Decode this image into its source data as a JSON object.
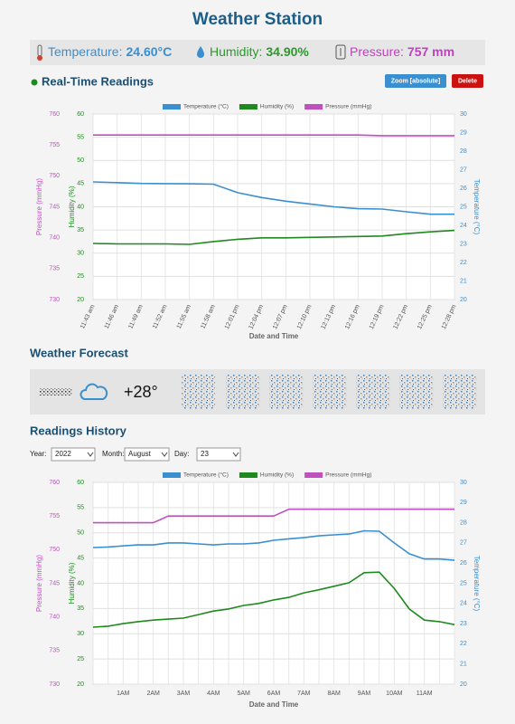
{
  "header": {
    "title": "Weather Station"
  },
  "status": {
    "temperature": {
      "label": "Temperature:",
      "value": "24.60°C"
    },
    "humidity": {
      "label": "Humidity:",
      "value": "34.90%"
    },
    "pressure": {
      "label": "Pressure:",
      "value": "757 mm"
    }
  },
  "realtime": {
    "title": "Real-Time Readings",
    "buttons": [
      "Zoom [absolute]",
      "Delete"
    ]
  },
  "forecast": {
    "title": "Weather Forecast",
    "temperature": "+28°"
  },
  "history": {
    "title": "Readings History",
    "filters": [
      {
        "label": "Year:",
        "value": "2022"
      },
      {
        "label": "Month:",
        "value": "August"
      },
      {
        "label": "Day:",
        "value": "23"
      }
    ]
  },
  "chart_data": [
    {
      "type": "line",
      "xlabel": "Date and Time",
      "grid": true,
      "categories": [
        "11:43 am",
        "11:46 am",
        "11:49 am",
        "11:52 am",
        "11:55 am",
        "11:58 am",
        "12:01 pm",
        "12:04 pm",
        "12:07 pm",
        "12:10 pm",
        "12:13 pm",
        "12:16 pm",
        "12:19 pm",
        "12:22 pm",
        "12:25 pm",
        "12:28 pm"
      ],
      "ylabel": "Humidity (%)",
      "ylim": [
        20,
        60
      ],
      "yticks": [
        20,
        25,
        30,
        35,
        40,
        45,
        50,
        55,
        60
      ],
      "y2label": "Temperature (°C)",
      "y2lim": [
        20,
        30
      ],
      "y2ticks": [
        20,
        21,
        22,
        23,
        24,
        25,
        26,
        27,
        28,
        29,
        30
      ],
      "y3label": "Pressure (mmHg)",
      "y3lim": [
        730,
        760
      ],
      "y3ticks": [
        730,
        735,
        740,
        745,
        750,
        755,
        760
      ],
      "series": [
        {
          "name": "Temperature (°C)",
          "color": "#3a8fd0",
          "axis": "y2",
          "values": [
            26.34,
            26.3,
            26.26,
            26.25,
            26.24,
            26.22,
            25.76,
            25.5,
            25.3,
            25.15,
            25.0,
            24.9,
            24.88,
            24.73,
            24.6,
            24.6
          ]
        },
        {
          "name": "Humidity (%)",
          "color": "#1e8a1e",
          "axis": "y",
          "values": [
            32.1,
            32.0,
            32.0,
            32.0,
            31.9,
            32.5,
            33.0,
            33.3,
            33.3,
            33.4,
            33.5,
            33.6,
            33.7,
            34.2,
            34.6,
            34.9
          ]
        },
        {
          "name": "Pressure (mmHg)",
          "color": "#c050c0",
          "axis": "y3",
          "values": [
            756.6,
            756.6,
            756.6,
            756.6,
            756.6,
            756.6,
            756.6,
            756.6,
            756.6,
            756.6,
            756.6,
            756.6,
            756.5,
            756.5,
            756.5,
            756.5
          ]
        }
      ]
    },
    {
      "type": "line",
      "xlabel": "Date and Time",
      "grid": true,
      "categories": [
        null,
        null,
        "1AM",
        null,
        "2AM",
        null,
        "3AM",
        null,
        "4AM",
        null,
        "5AM",
        null,
        "6AM",
        null,
        "7AM",
        null,
        "8AM",
        null,
        "9AM",
        null,
        "10AM",
        null,
        "11AM",
        null,
        null
      ],
      "ylabel": "Humidity (%)",
      "ylim": [
        20,
        60
      ],
      "yticks": [
        20,
        25,
        30,
        35,
        40,
        45,
        50,
        55,
        60
      ],
      "y2label": "Temperature (°C)",
      "y2lim": [
        20,
        30
      ],
      "y2ticks": [
        20,
        21,
        22,
        23,
        24,
        25,
        26,
        27,
        28,
        29,
        30
      ],
      "y3label": "Pressure (mmHg)",
      "y3lim": [
        730,
        760
      ],
      "y3ticks": [
        730,
        735,
        740,
        745,
        750,
        755,
        760
      ],
      "series": [
        {
          "name": "Temperature (°C)",
          "color": "#3a8fd0",
          "axis": "y2",
          "values": [
            26.77,
            26.8,
            26.85,
            26.9,
            26.9,
            27.0,
            27.0,
            26.95,
            26.9,
            26.95,
            26.95,
            27.0,
            27.13,
            27.2,
            27.26,
            27.35,
            27.4,
            27.44,
            27.6,
            27.58,
            27.0,
            26.46,
            26.2,
            26.2,
            26.14
          ]
        },
        {
          "name": "Humidity (%)",
          "color": "#1e8a1e",
          "axis": "y",
          "values": [
            31.3,
            31.5,
            32.0,
            32.4,
            32.7,
            32.9,
            33.1,
            33.8,
            34.5,
            34.9,
            35.6,
            36.0,
            36.7,
            37.2,
            38.1,
            38.7,
            39.4,
            40.1,
            42.1,
            42.2,
            39.0,
            34.9,
            32.7,
            32.4,
            31.8
          ]
        },
        {
          "name": "Pressure (mmHg)",
          "color": "#c050c0",
          "axis": "y3",
          "values": [
            754,
            754,
            754,
            754,
            754,
            755,
            755,
            755,
            755,
            755,
            755,
            755,
            755,
            756,
            756,
            756,
            756,
            756,
            756,
            756,
            756,
            756,
            756,
            756,
            756
          ]
        }
      ]
    }
  ]
}
